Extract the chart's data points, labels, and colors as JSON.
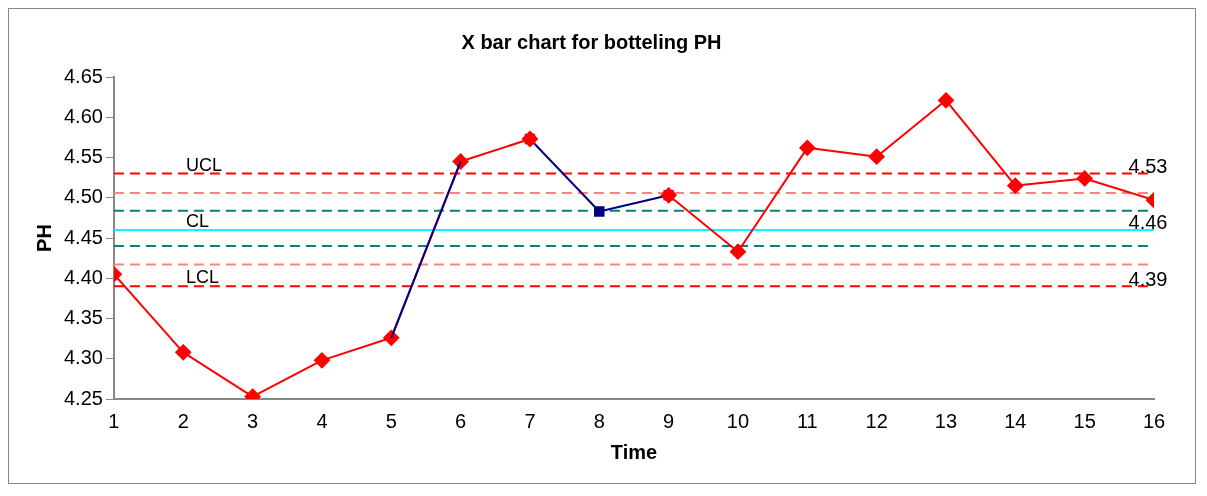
{
  "chart_data": {
    "type": "line",
    "title": "X bar chart for botteling PH",
    "xlabel": "Time",
    "ylabel": "PH",
    "x": [
      1,
      2,
      3,
      4,
      5,
      6,
      7,
      8,
      9,
      10,
      11,
      12,
      13,
      14,
      15,
      16
    ],
    "series": [
      {
        "color": "#ff0000",
        "values": [
          4.405,
          4.308,
          4.253,
          4.298,
          4.326,
          4.545,
          4.573,
          null,
          4.503,
          4.433,
          4.562,
          4.551,
          4.621,
          4.515,
          4.524,
          4.497
        ]
      },
      {
        "color": "#000080",
        "x": [
          5,
          6
        ],
        "values": [
          4.326,
          4.545
        ],
        "marker": "none"
      },
      {
        "color": "#000080",
        "colors": [
          "#ff0000",
          "#000080",
          "#ff0000"
        ],
        "x": [
          7,
          8,
          9
        ],
        "values": [
          4.573,
          4.483,
          4.503
        ],
        "marker": "square"
      }
    ],
    "xlim": [
      1,
      16
    ],
    "xticks": [
      1,
      2,
      3,
      4,
      5,
      6,
      7,
      8,
      9,
      10,
      11,
      12,
      13,
      14,
      15,
      16
    ],
    "ylim": [
      4.25,
      4.65
    ],
    "yticks": [
      4.25,
      {
        "value": 4.3,
        "label": "4.30"
      },
      4.35,
      {
        "value": 4.4,
        "label": "4.40"
      },
      4.45,
      {
        "value": 4.5,
        "label": "4.50"
      },
      4.55,
      {
        "value": 4.6,
        "label": "4.60"
      },
      4.65
    ],
    "ref_lines": [
      {
        "axis": "y",
        "value": 4.53,
        "label": "UCL",
        "color": "#ff0000",
        "line_style": "dashed"
      },
      {
        "axis": "y",
        "value": 4.506,
        "color": "#ff8080",
        "line_style": "dashed"
      },
      {
        "axis": "y",
        "value": 4.484,
        "color": "#008080",
        "line_style": "dashed"
      },
      {
        "axis": "y",
        "value": 4.46,
        "label": "CL",
        "color": "#00ffff",
        "line_style": "solid"
      },
      {
        "axis": "y",
        "value": 4.44,
        "color": "#008080",
        "line_style": "dashed"
      },
      {
        "axis": "y",
        "value": 4.417,
        "color": "#ff8080",
        "line_style": "dashed"
      },
      {
        "axis": "y",
        "value": 4.39,
        "label": "LCL",
        "color": "#ff0000",
        "line_style": "dashed"
      }
    ],
    "annotations": [
      {
        "text": "4.53",
        "y": 4.53
      },
      {
        "text": "4.46",
        "y": 4.46
      },
      {
        "text": "4.39",
        "y": 4.39
      }
    ],
    "marker": "diamond",
    "line_style": "solid",
    "grid": false,
    "legend": false
  }
}
